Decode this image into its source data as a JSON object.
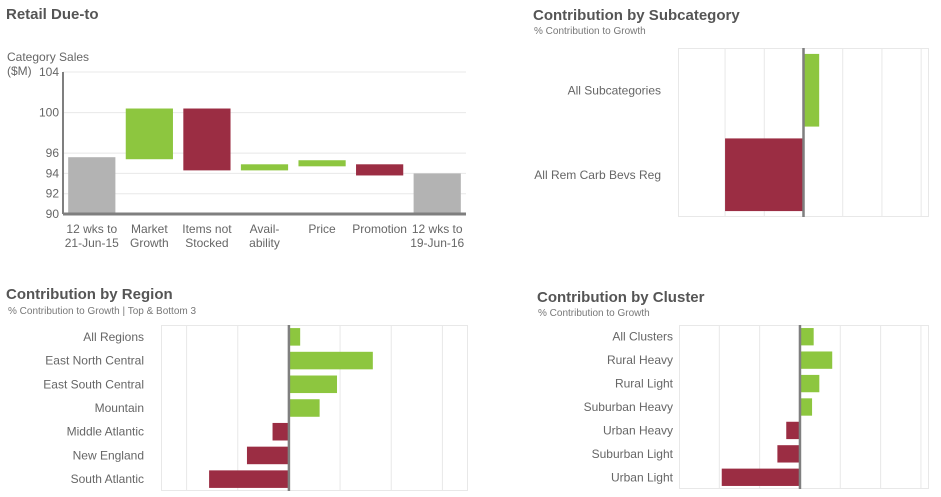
{
  "panels": {
    "waterfall": {
      "title": "Retail Due-to",
      "ylabel_line1": "Category Sales",
      "ylabel_line2": "($M)"
    },
    "subcategory": {
      "title": "Contribution by Subcategory",
      "subtitle": "% Contribution to Growth"
    },
    "region": {
      "title": "Contribution  by Region",
      "subtitle": "% Contribution to Growth  | Top & Bottom 3"
    },
    "cluster": {
      "title": "Contribution by Cluster",
      "subtitle": "% Contribution to Growth"
    }
  },
  "colors": {
    "positive": "#8dc63f",
    "negative": "#9b2d43",
    "total": "#b3b3b3",
    "axis": "#7f7f7f",
    "grid": "#e8e8e8"
  },
  "chart_data": [
    {
      "type": "bar",
      "subtype": "waterfall",
      "title": "Retail Due-to",
      "ylabel": "Category Sales ($M)",
      "ylim": [
        90,
        104
      ],
      "yticks": [
        90,
        92,
        94,
        96,
        100,
        104
      ],
      "categories": [
        [
          "12 wks to",
          "21-Jun-15"
        ],
        [
          "Market",
          "Growth"
        ],
        [
          "Items not",
          "Stocked"
        ],
        [
          "Avail-",
          "ability"
        ],
        [
          "Price"
        ],
        [
          "Promotion"
        ],
        [
          "12 wks to",
          "19-Jun-16"
        ]
      ],
      "bars": [
        {
          "kind": "total",
          "start": 90,
          "end": 95.6
        },
        {
          "kind": "positive",
          "start": 95.4,
          "end": 100.4
        },
        {
          "kind": "negative",
          "start": 100.4,
          "end": 94.3
        },
        {
          "kind": "positive",
          "start": 94.3,
          "end": 94.9
        },
        {
          "kind": "positive",
          "start": 94.7,
          "end": 95.3
        },
        {
          "kind": "negative",
          "start": 94.9,
          "end": 93.8
        },
        {
          "kind": "total",
          "start": 90,
          "end": 94.0
        }
      ]
    },
    {
      "type": "bar",
      "orientation": "horizontal",
      "title": "Contribution by Subcategory",
      "categories": [
        "All Subcategories",
        "All Rem Carb Bevs Reg"
      ],
      "values": [
        0.2,
        -1.0
      ],
      "xlim": [
        -1.6,
        1.6
      ],
      "grid": true
    },
    {
      "type": "bar",
      "orientation": "horizontal",
      "title": "Contribution  by Region",
      "categories": [
        "All Regions",
        "East North Central",
        "East South Central",
        "Mountain",
        "Middle Atlantic",
        "New England",
        "South Atlantic"
      ],
      "values": [
        0.11,
        0.82,
        0.47,
        0.3,
        -0.16,
        -0.41,
        -0.78
      ],
      "xlim": [
        -1.25,
        1.75
      ],
      "grid": true
    },
    {
      "type": "bar",
      "orientation": "horizontal",
      "title": "Contribution by Cluster",
      "categories": [
        "All Clusters",
        "Rural Heavy",
        "Rural Light",
        "Suburban Heavy",
        "Urban Heavy",
        "Suburban Light",
        "Urban Light"
      ],
      "values": [
        0.17,
        0.4,
        0.24,
        0.15,
        -0.17,
        -0.28,
        -0.97
      ],
      "xlim": [
        -1.5,
        1.6
      ],
      "grid": true
    }
  ]
}
